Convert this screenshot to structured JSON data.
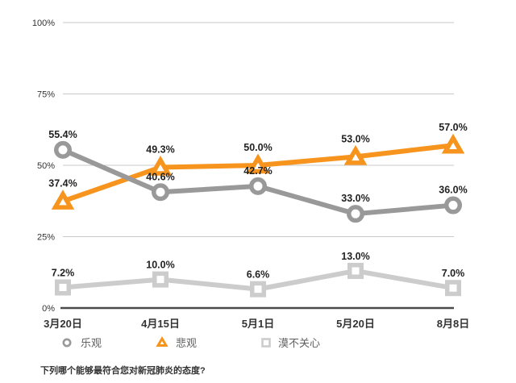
{
  "chart_data": {
    "type": "line",
    "caption": "下列哪个能够最符合您对新冠肺炎的态度?",
    "categories": [
      "3月20日",
      "4月15日",
      "5月1日",
      "5月20日",
      "8月8日"
    ],
    "series": [
      {
        "name": "乐观",
        "marker": "circle",
        "color": "#999999",
        "values": [
          55.4,
          40.6,
          42.7,
          33.0,
          36.0
        ]
      },
      {
        "name": "悲观",
        "marker": "triangle",
        "color": "#F7941E",
        "values": [
          37.4,
          49.3,
          50.0,
          53.0,
          57.0
        ]
      },
      {
        "name": "漠不关心",
        "marker": "square",
        "color": "#CCCCCC",
        "values": [
          7.2,
          10.0,
          6.6,
          13.0,
          7.0
        ]
      }
    ],
    "value_labels": {
      "乐观": [
        "55.4%",
        "40.6%",
        "42.7%",
        "33.0%",
        "36.0%"
      ],
      "悲观": [
        "37.4%",
        "49.3%",
        "50.0%",
        "53.0%",
        "57.0%"
      ],
      "漠不关心": [
        "7.2%",
        "10.0%",
        "6.6%",
        "13.0%",
        "7.0%"
      ]
    },
    "y_axis": {
      "min": 0,
      "max": 100,
      "ticks": [
        {
          "value": 0,
          "label": "0%"
        },
        {
          "value": 25,
          "label": "25%"
        },
        {
          "value": 50,
          "label": "50%"
        },
        {
          "value": 75,
          "label": "75%"
        },
        {
          "value": 100,
          "label": "100%"
        }
      ]
    },
    "grid": true,
    "legend_position": "bottom"
  },
  "colors": {
    "background": "#ffffff",
    "axis": "#4a4a4a",
    "grid": "#c9c9c9",
    "value_label": "#222222",
    "tick_label": "#333333",
    "legend_text": "#606060",
    "marker_fill": "#ffffff"
  }
}
